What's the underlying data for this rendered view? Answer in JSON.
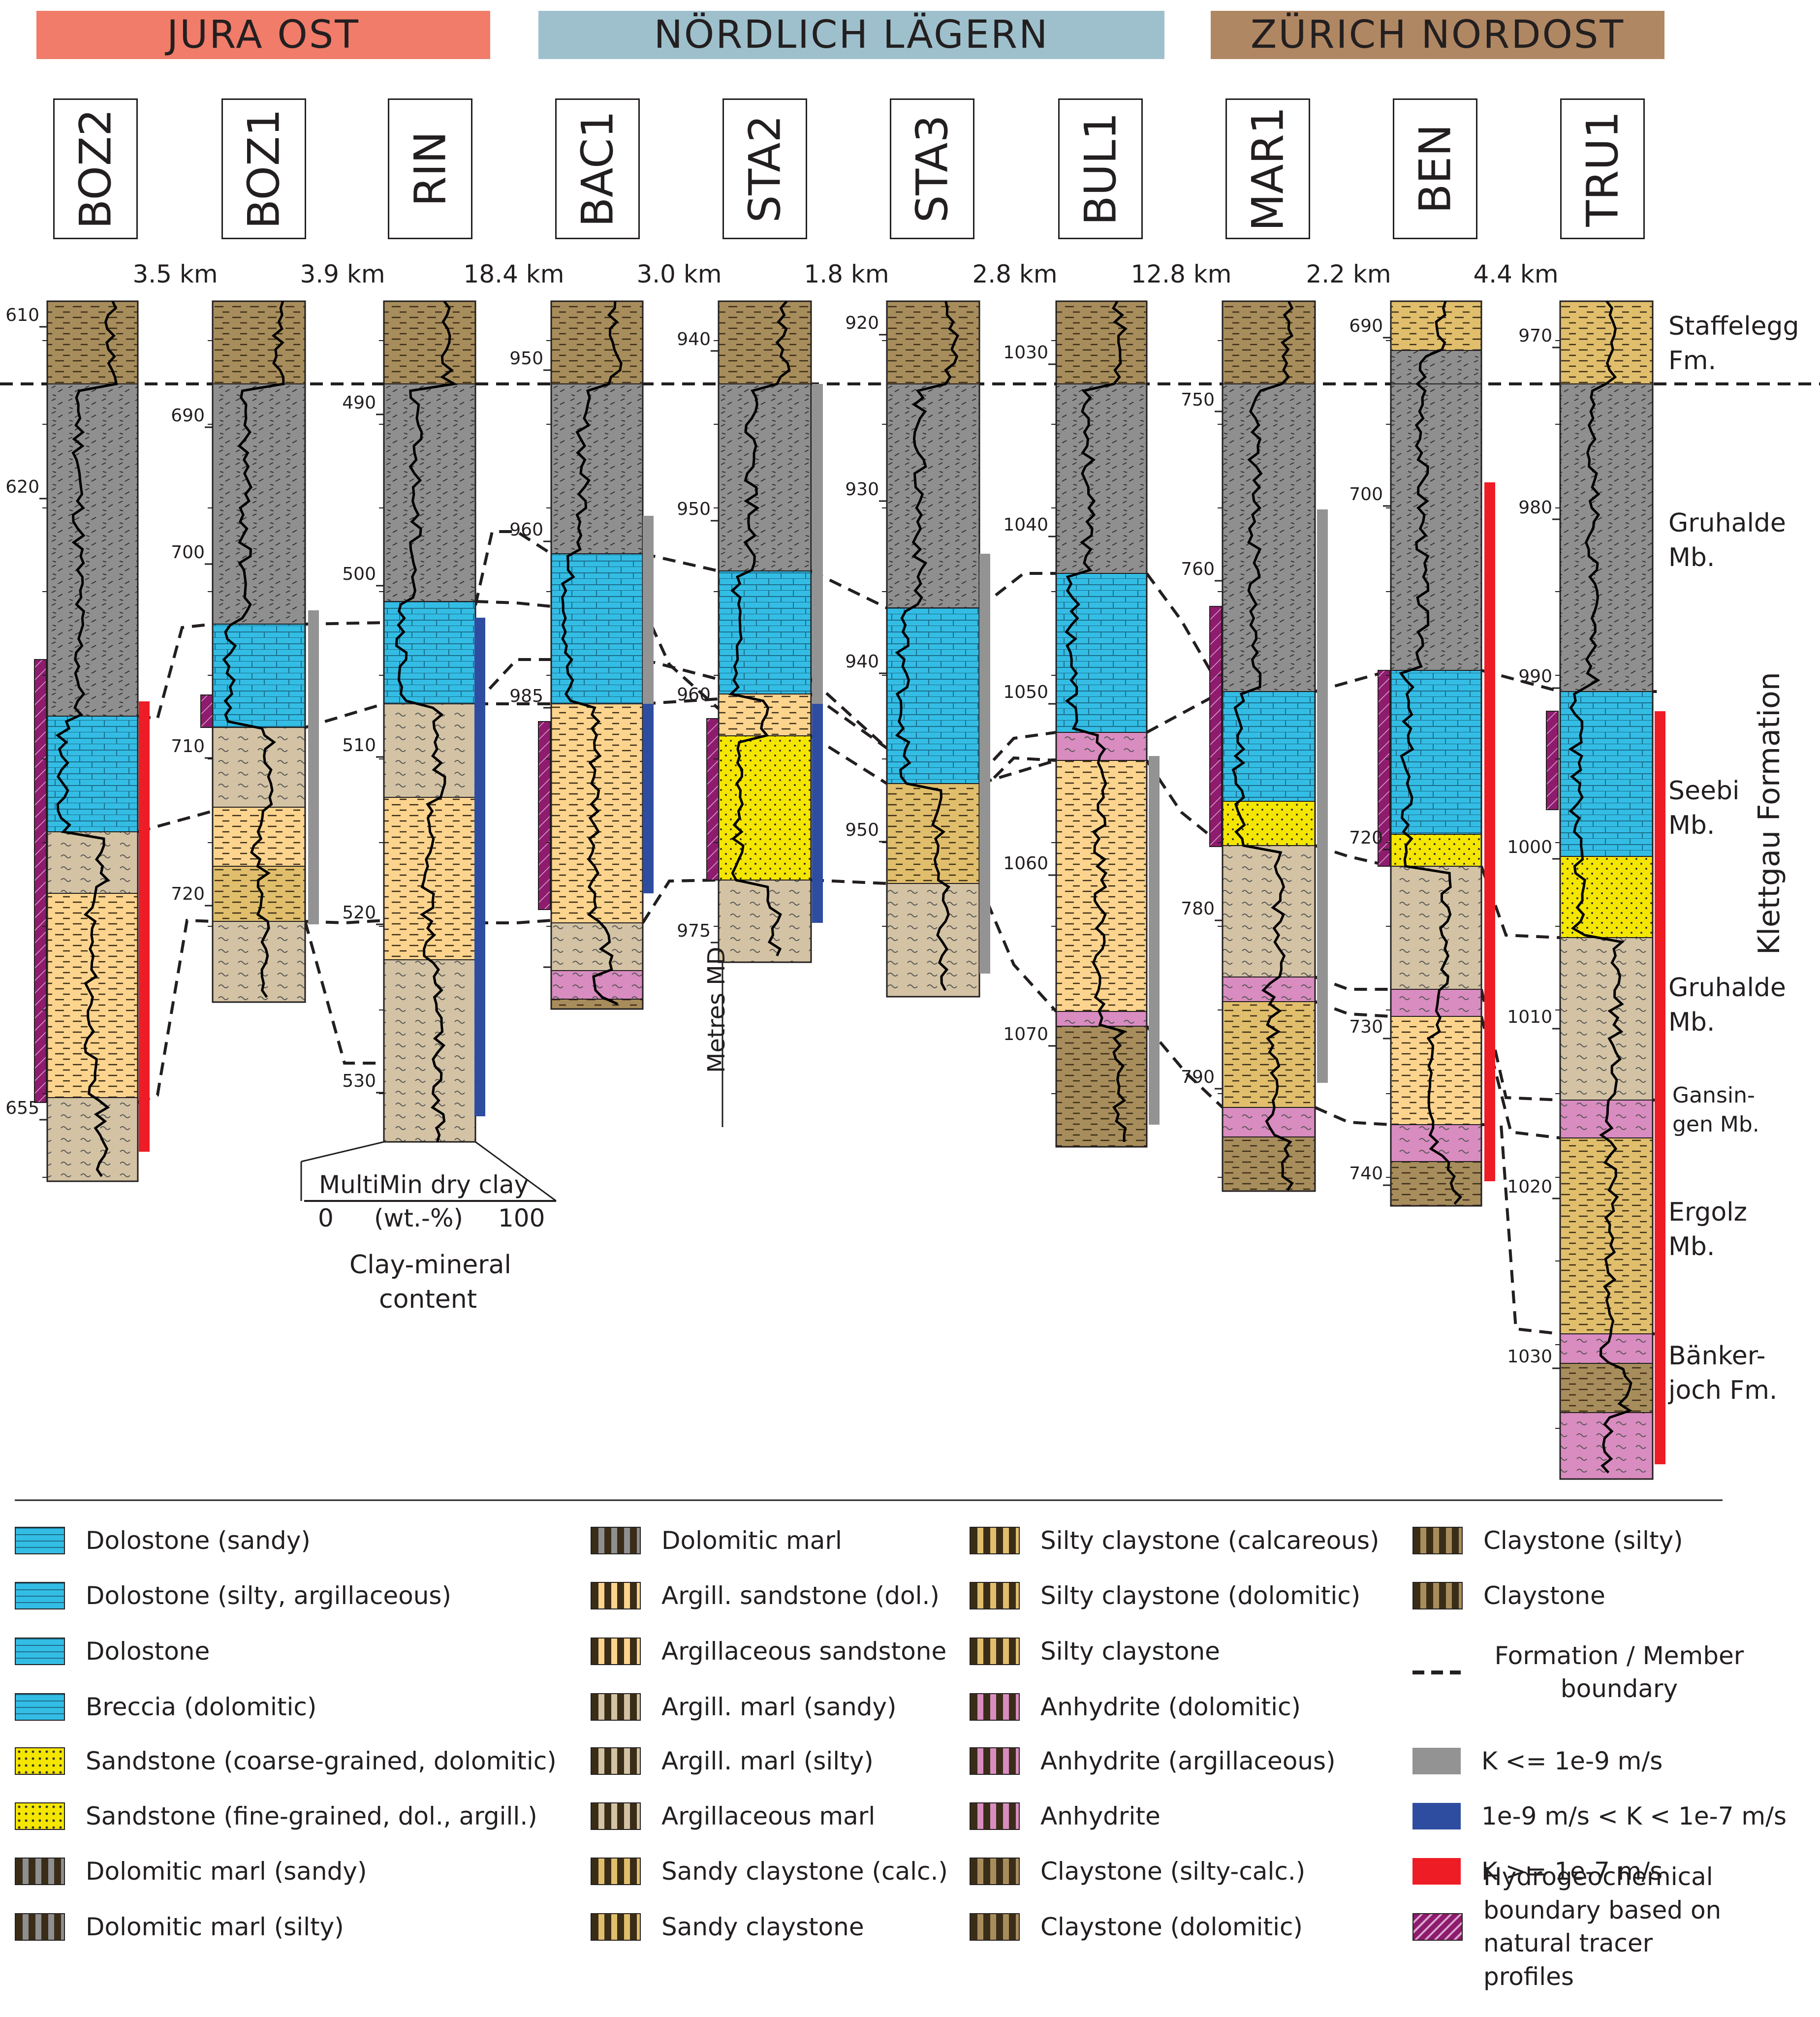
{
  "regions": [
    {
      "label": "JURA OST",
      "color": "#f07c69"
    },
    {
      "label": "NÖRDLICH LÄGERN",
      "color": "#9ec0cc"
    },
    {
      "label": "ZÜRICH NORDOST",
      "color": "#b08763"
    }
  ],
  "wells": [
    "BOZ2",
    "BOZ1",
    "RIN",
    "BAC1",
    "STA2",
    "STA3",
    "BUL1",
    "MAR1",
    "BEN",
    "TRU1"
  ],
  "distances": [
    "3.5 km",
    "3.9 km",
    "18.4 km",
    "3.0 km",
    "1.8 km",
    "2.8 km",
    "12.8 km",
    "2.2 km",
    "4.4 km"
  ],
  "depth_ticks": [
    [
      "610",
      "620",
      "655"
    ],
    [
      "690",
      "700",
      "710",
      "720"
    ],
    [
      "490",
      "500",
      "510",
      "520",
      "530"
    ],
    [
      "950",
      "960",
      "985"
    ],
    [
      "940",
      "950",
      "960",
      "975"
    ],
    [
      "920",
      "930",
      "940",
      "950"
    ],
    [
      "1030",
      "1040",
      "1050",
      "1060",
      "1070"
    ],
    [
      "750",
      "760",
      "780",
      "790"
    ],
    [
      "690",
      "700",
      "720",
      "730",
      "740"
    ],
    [
      "970",
      "980",
      "990",
      "1000",
      "1010",
      "1020",
      "1030"
    ]
  ],
  "axis": {
    "md_label": "Metres MD",
    "scale_title": "MultiMin dry clay",
    "scale_min": "0",
    "scale_unit": "(wt.-%)",
    "scale_max": "100",
    "caption_1": "Clay-mineral",
    "caption_2": "content"
  },
  "units": [
    {
      "line1": "Staffelegg",
      "line2": "Fm."
    },
    {
      "line1": "Gruhalde",
      "line2": "Mb."
    },
    {
      "line1": "Seebi",
      "line2": "Mb."
    },
    {
      "line1": "Gruhalde",
      "line2": "Mb."
    },
    {
      "line1": "Gansin-",
      "line2": "gen Mb."
    },
    {
      "line1": "Ergolz",
      "line2": "Mb."
    },
    {
      "line1": "Bänker-",
      "line2": "joch Fm."
    }
  ],
  "formation_label": "Klettgau Formation",
  "legend": [
    {
      "label": "Dolostone (sandy)",
      "color": "#33bde5"
    },
    {
      "label": "Dolostone (silty, argillaceous)",
      "color": "#33bde5"
    },
    {
      "label": "Dolostone",
      "color": "#33bde5"
    },
    {
      "label": "Breccia (dolomitic)",
      "color": "#33bde5"
    },
    {
      "label": "Sandstone (coarse-grained, dolomitic)",
      "color": "#f5e600"
    },
    {
      "label": "Sandstone (fine-grained, dol., argill.)",
      "color": "#f5e600"
    },
    {
      "label": "Dolomitic marl (sandy)",
      "color": "#8f8f8f"
    },
    {
      "label": "Dolomitic marl (silty)",
      "color": "#8f8f8f"
    },
    {
      "label": "Dolomitic marl",
      "color": "#8f8f8f"
    },
    {
      "label": "Argill. sandstone (dol.)",
      "color": "#fcd48e"
    },
    {
      "label": "Argillaceous sandstone",
      "color": "#fcd48e"
    },
    {
      "label": "Argill. marl (sandy)",
      "color": "#d3c3a4"
    },
    {
      "label": "Argill. marl (silty)",
      "color": "#d3c3a4"
    },
    {
      "label": "Argillaceous marl",
      "color": "#d3c3a4"
    },
    {
      "label": "Sandy claystone (calc.)",
      "color": "#e0be6c"
    },
    {
      "label": "Sandy claystone",
      "color": "#e0be6c"
    },
    {
      "label": "Silty claystone (calcareous)",
      "color": "#e0be6c"
    },
    {
      "label": "Silty claystone (dolomitic)",
      "color": "#e0be6c"
    },
    {
      "label": "Silty claystone",
      "color": "#e0be6c"
    },
    {
      "label": "Anhydrite (dolomitic)",
      "color": "#d98cc0"
    },
    {
      "label": "Anhydrite (argillaceous)",
      "color": "#d98cc0"
    },
    {
      "label": "Anhydrite",
      "color": "#d98cc0"
    },
    {
      "label": "Claystone (silty-calc.)",
      "color": "#a88d5c"
    },
    {
      "label": "Claystone (dolomitic)",
      "color": "#a88d5c"
    },
    {
      "label": "Claystone (silty)",
      "color": "#a88d5c"
    },
    {
      "label": "Claystone",
      "color": "#a88d5c"
    },
    {
      "label": "Formation / Member boundary"
    },
    {
      "label": "K <= 1e-9 m/s",
      "color": "#939393"
    },
    {
      "label": "1e-9 m/s < K < 1e-7 m/s",
      "color": "#2e4da0"
    },
    {
      "label": "K >= 1e-7 m/s",
      "color": "#ee1c25"
    },
    {
      "label": "Hydrogeochemical boundary based on natural tracer profiles",
      "color": "#8e1b6e"
    }
  ]
}
